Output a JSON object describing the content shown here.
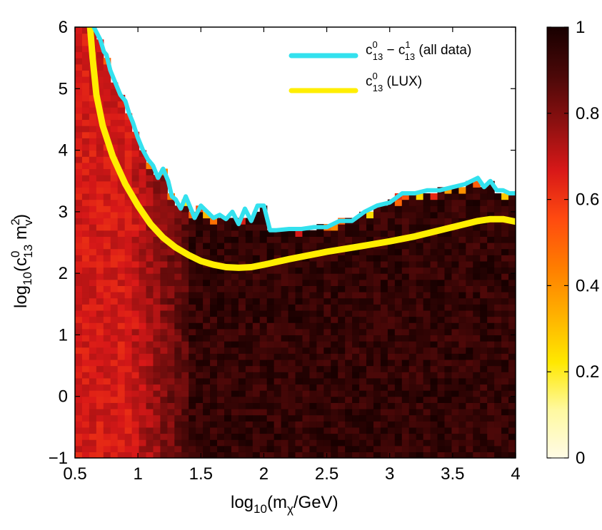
{
  "chart_data": {
    "type": "heatmap",
    "title": "",
    "xlabel": {
      "base": "log",
      "base_sub": "10",
      "open": "(m",
      "var_sub": "χ",
      "rest": "/GeV)"
    },
    "ylabel": {
      "base": "log",
      "base_sub": "10",
      "open": "(c",
      "sup1": "0",
      "sub1": "13",
      "mid": " m",
      "sup2": "2",
      "sub2": "v",
      "close": ")"
    },
    "xlim": [
      0.5,
      4
    ],
    "ylim": [
      -1,
      6
    ],
    "xticks": [
      "0.5",
      "1",
      "1.5",
      "2",
      "2.5",
      "3",
      "3.5",
      "4"
    ],
    "yticks": [
      "−1",
      "0",
      "1",
      "2",
      "3",
      "4",
      "5",
      "6"
    ],
    "colorbar": {
      "range": [
        0,
        1
      ],
      "ticks": [
        "0",
        "0.2",
        "0.4",
        "0.6",
        "0.8",
        "1"
      ],
      "colors": [
        "#fffbe6",
        "#fff9a0",
        "#ffe800",
        "#ffb000",
        "#ff7c00",
        "#ff4a10",
        "#d81818",
        "#8c1010",
        "#4a0808",
        "#180000"
      ]
    },
    "legend": {
      "position": "top-right",
      "entries": [
        {
          "label_main": "c",
          "sup": "0",
          "sub": "13",
          "rest": " − ",
          "label2": "c",
          "sup2": "1",
          "sub2": "13",
          "suffix": " (all data)",
          "color": "#33e1ee"
        },
        {
          "label_main": "c",
          "sup": "0",
          "sub": "13",
          "rest": " (LUX)",
          "label2": "",
          "sup2": "",
          "sub2": "",
          "suffix": "",
          "color": "#ffee00"
        }
      ]
    },
    "series": [
      {
        "color": "#ffee00",
        "x": [
          0.62,
          0.64,
          0.67,
          0.72,
          0.8,
          0.9,
          1.0,
          1.1,
          1.2,
          1.3,
          1.4,
          1.5,
          1.6,
          1.7,
          1.8,
          1.9,
          2.0,
          2.2,
          2.5,
          2.8,
          3.0,
          3.2,
          3.5,
          3.7,
          3.8,
          3.9,
          4.0
        ],
        "y": [
          6.0,
          5.5,
          4.9,
          4.4,
          3.9,
          3.45,
          3.1,
          2.8,
          2.58,
          2.42,
          2.3,
          2.2,
          2.14,
          2.1,
          2.09,
          2.1,
          2.14,
          2.23,
          2.35,
          2.45,
          2.52,
          2.6,
          2.75,
          2.85,
          2.88,
          2.88,
          2.84
        ]
      },
      {
        "color": "#33e1ee",
        "x": [
          0.65,
          0.7,
          0.73,
          0.75,
          0.78,
          0.8,
          0.83,
          0.86,
          0.9,
          0.93,
          0.96,
          1.0,
          1.04,
          1.08,
          1.12,
          1.16,
          1.2,
          1.24,
          1.27,
          1.3,
          1.34,
          1.38,
          1.42,
          1.45,
          1.5,
          1.55,
          1.6,
          1.65,
          1.7,
          1.75,
          1.8,
          1.85,
          1.9,
          1.95,
          2.0,
          2.05,
          2.1,
          2.2,
          2.3,
          2.4,
          2.5,
          2.6,
          2.7,
          2.8,
          2.9,
          3.0,
          3.1,
          3.2,
          3.3,
          3.4,
          3.5,
          3.6,
          3.7,
          3.75,
          3.8,
          3.85,
          3.9,
          3.95,
          4.0
        ],
        "y": [
          6.0,
          5.8,
          5.6,
          5.55,
          5.3,
          5.2,
          5.05,
          4.9,
          4.8,
          4.6,
          4.45,
          4.2,
          4.0,
          3.85,
          3.75,
          3.55,
          3.7,
          3.5,
          3.25,
          3.2,
          3.05,
          3.25,
          3.05,
          2.9,
          3.1,
          3.0,
          2.9,
          2.95,
          2.88,
          3.0,
          2.8,
          3.05,
          2.85,
          3.1,
          3.1,
          2.7,
          2.7,
          2.72,
          2.72,
          2.75,
          2.75,
          2.85,
          2.85,
          3.0,
          3.1,
          3.15,
          3.3,
          3.3,
          3.35,
          3.35,
          3.4,
          3.45,
          3.55,
          3.4,
          3.5,
          3.35,
          3.35,
          3.3,
          3.3
        ]
      }
    ]
  }
}
